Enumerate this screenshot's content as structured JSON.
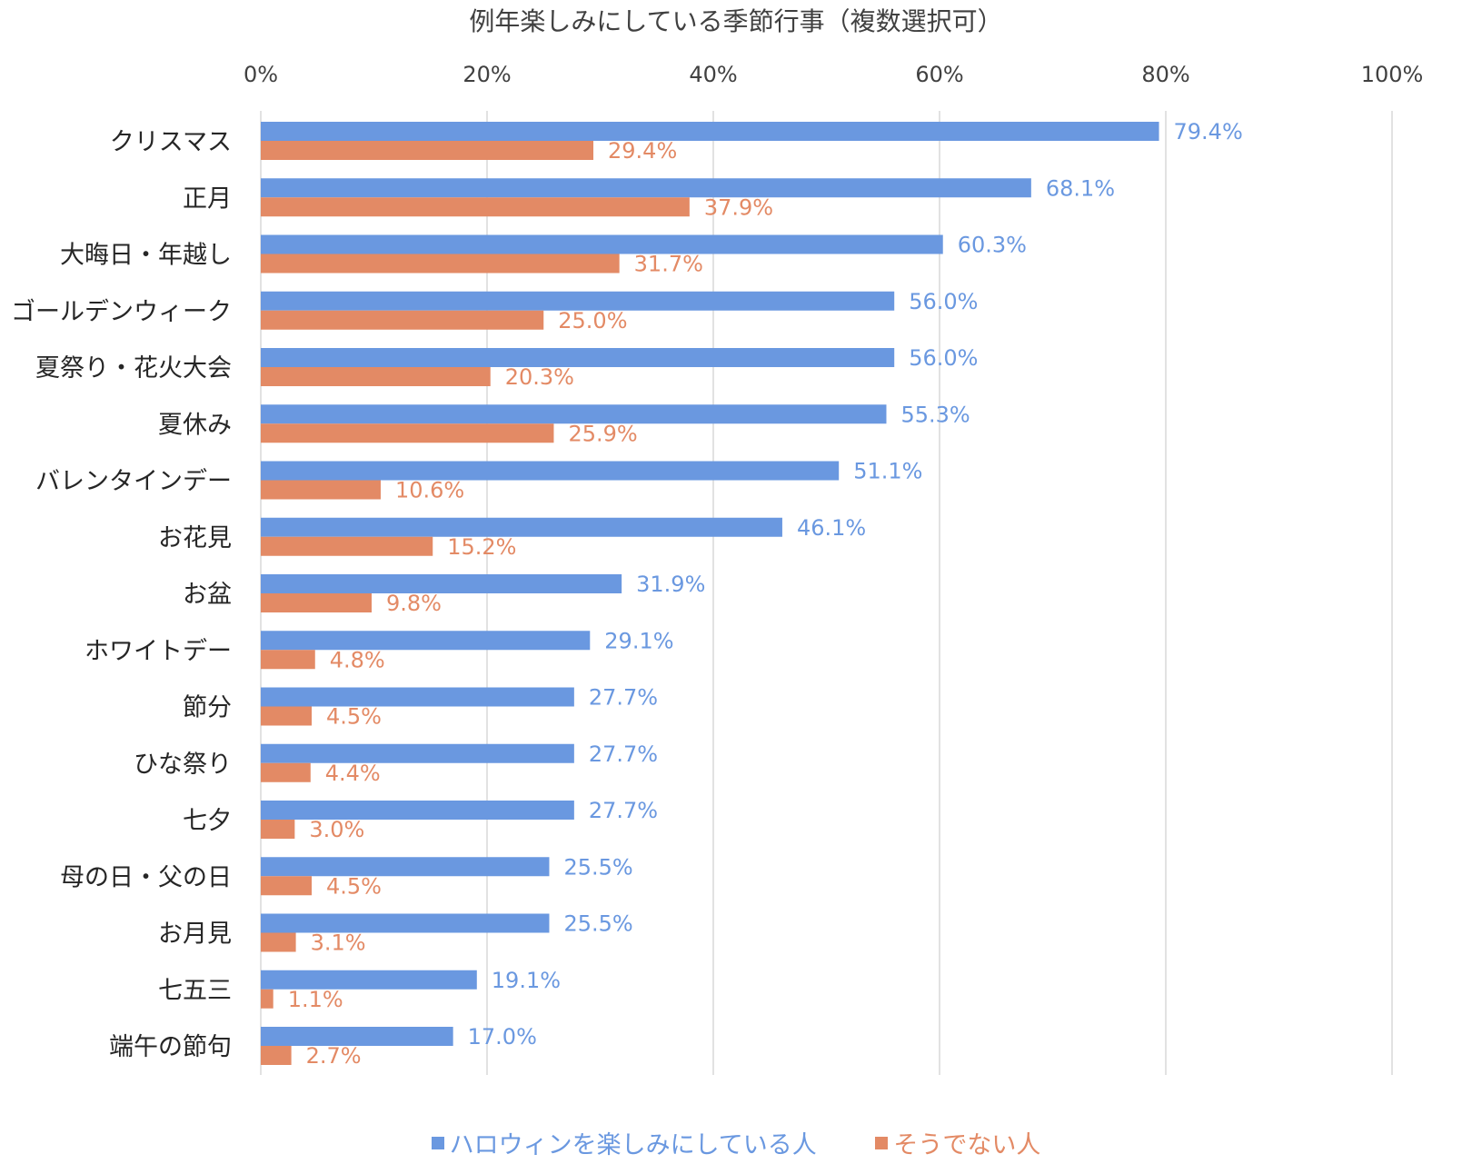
{
  "chart_data": {
    "type": "bar",
    "orientation": "horizontal",
    "title": "例年楽しみにしている季節行事（複数選択可）",
    "xlabel": "",
    "ylabel": "",
    "xlim": [
      0,
      100
    ],
    "x_ticks": [
      0,
      20,
      40,
      60,
      80,
      100
    ],
    "x_tick_labels": [
      "0%",
      "20%",
      "40%",
      "60%",
      "80%",
      "100%"
    ],
    "grid": true,
    "legend_position": "bottom",
    "categories": [
      "クリスマス",
      "正月",
      "大晦日・年越し",
      "ゴールデンウィーク",
      "夏祭り・花火大会",
      "夏休み",
      "バレンタインデー",
      "お花見",
      "お盆",
      "ホワイトデー",
      "節分",
      "ひな祭り",
      "七夕",
      "母の日・父の日",
      "お月見",
      "七五三",
      "端午の節句"
    ],
    "series": [
      {
        "name": "ハロウィンを楽しみにしている人",
        "color": "#6a98e0",
        "values": [
          79.4,
          68.1,
          60.3,
          56.0,
          56.0,
          55.3,
          51.1,
          46.1,
          31.9,
          29.1,
          27.7,
          27.7,
          27.7,
          25.5,
          25.5,
          19.1,
          17.0
        ],
        "labels": [
          "79.4%",
          "68.1%",
          "60.3%",
          "56.0%",
          "56.0%",
          "55.3%",
          "51.1%",
          "46.1%",
          "31.9%",
          "29.1%",
          "27.7%",
          "27.7%",
          "27.7%",
          "25.5%",
          "25.5%",
          "19.1%",
          "17.0%"
        ]
      },
      {
        "name": "そうでない人",
        "color": "#e38a65",
        "values": [
          29.4,
          37.9,
          31.7,
          25.0,
          20.3,
          25.9,
          10.6,
          15.2,
          9.8,
          4.8,
          4.5,
          4.4,
          3.0,
          4.5,
          3.1,
          1.1,
          2.7
        ],
        "labels": [
          "29.4%",
          "37.9%",
          "31.7%",
          "25.0%",
          "20.3%",
          "25.9%",
          "10.6%",
          "15.2%",
          "9.8%",
          "4.8%",
          "4.5%",
          "4.4%",
          "3.0%",
          "4.5%",
          "3.1%",
          "1.1%",
          "2.7%"
        ]
      }
    ]
  }
}
